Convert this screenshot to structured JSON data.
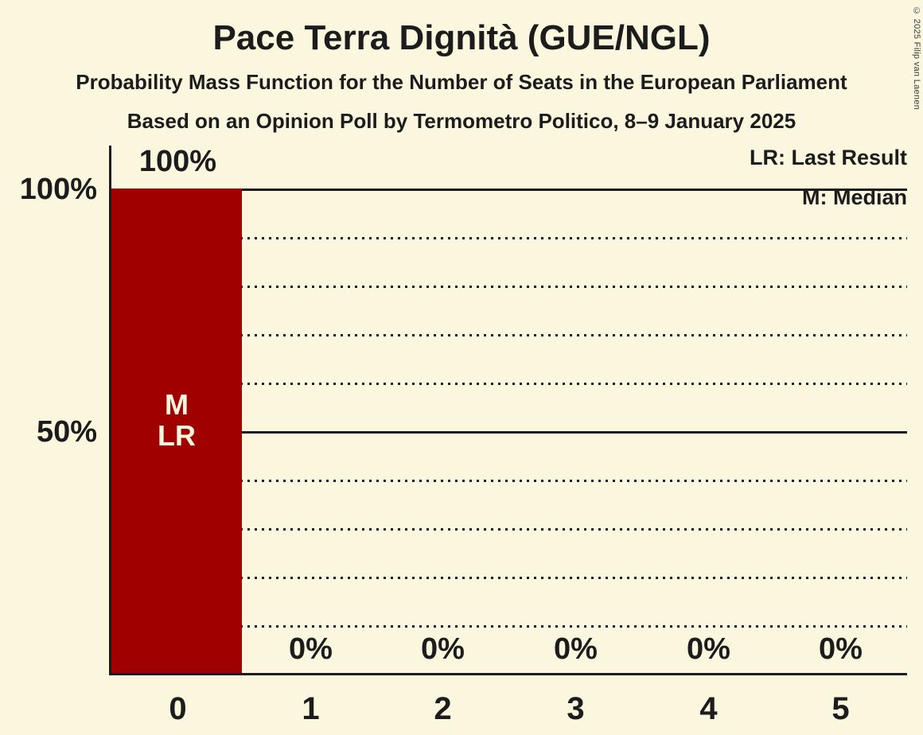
{
  "header": {
    "title": "Pace Terra Dignità (GUE/NGL)",
    "subtitle": "Probability Mass Function for the Number of Seats in the European Parliament",
    "poll_line": "Based on an Opinion Poll by Termometro Politico, 8–9 January 2025"
  },
  "copyright": "© 2025 Filip van Laenen",
  "legend": {
    "last_result": "LR: Last Result",
    "median": "M: Median"
  },
  "chart_data": {
    "type": "bar",
    "title": "Pace Terra Dignità (GUE/NGL)",
    "xlabel": "",
    "ylabel": "",
    "categories": [
      "0",
      "1",
      "2",
      "3",
      "4",
      "5"
    ],
    "values": [
      100,
      0,
      0,
      0,
      0,
      0
    ],
    "value_labels": [
      "100%",
      "0%",
      "0%",
      "0%",
      "0%",
      "0%"
    ],
    "ylim": [
      0,
      100
    ],
    "y_tick_labels": {
      "top": "100%",
      "mid": "50%"
    },
    "gridlines": {
      "solid_at_percent": [
        100,
        50
      ],
      "dotted_at_percent": [
        90,
        80,
        70,
        60,
        40,
        30,
        20,
        10
      ]
    },
    "legend_position": "top-right",
    "bar_annotation": {
      "line1": "M",
      "line2": "LR"
    },
    "colors": {
      "bar": "#A00000",
      "background": "#FBF7DF",
      "text": "#1C1C1C",
      "bar_label": "#FBF7DF"
    }
  }
}
